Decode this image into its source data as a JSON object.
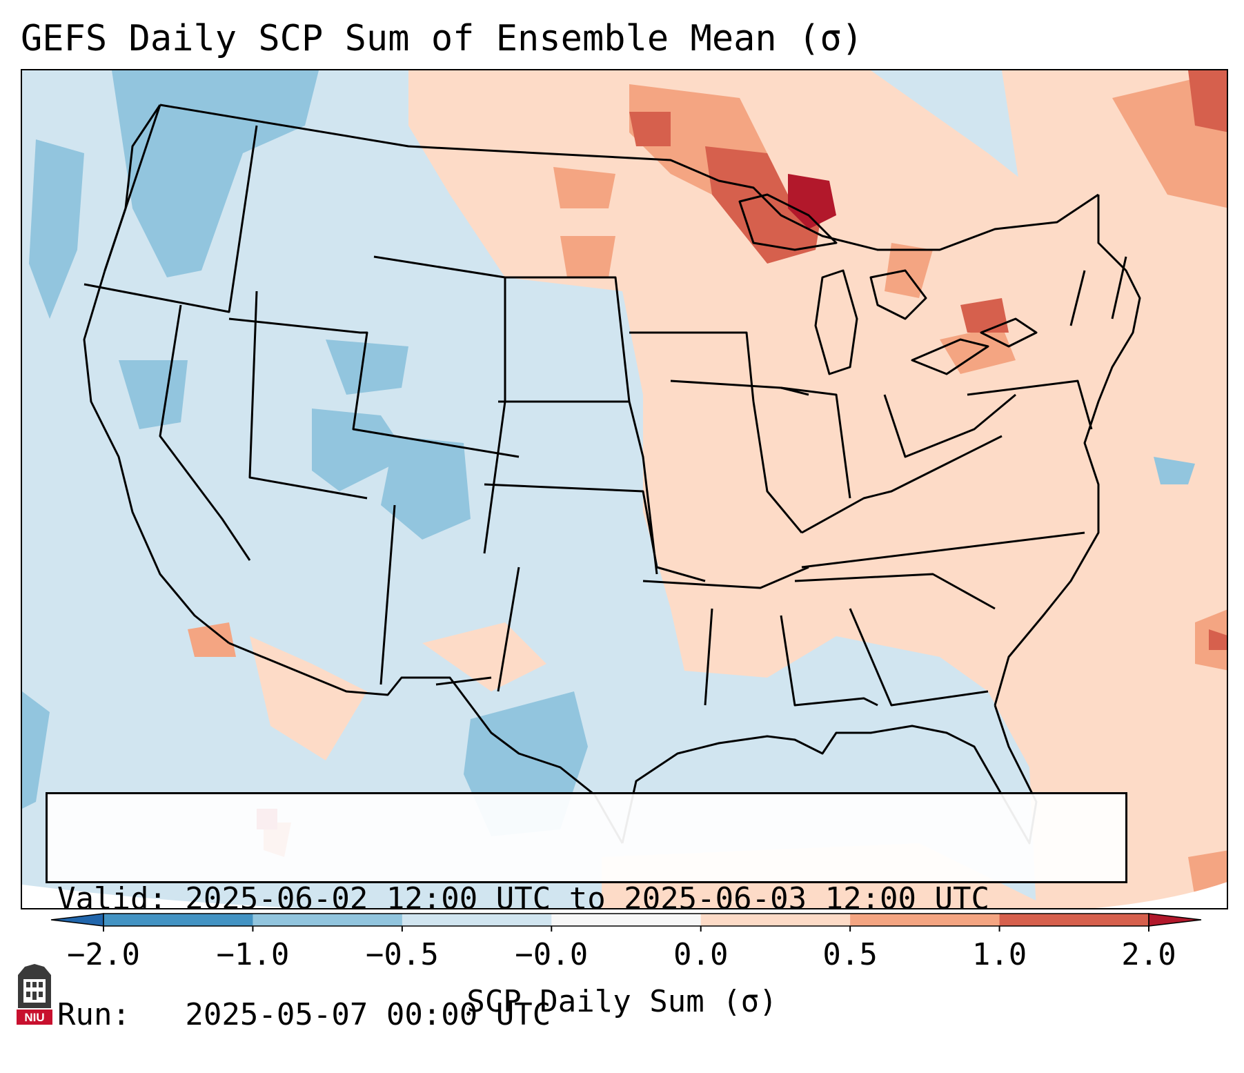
{
  "title": "GEFS Daily SCP Sum of Ensemble Mean (σ)",
  "info": {
    "valid_line": "Valid: 2025-06-02 12:00 UTC to 2025-06-03 12:00 UTC",
    "run_line": "Run:   2025-05-07 00:00 UTC"
  },
  "colorbar": {
    "label": "SCP Daily Sum (σ)",
    "ticks": [
      "−2.0",
      "−1.0",
      "−0.5",
      "−0.0",
      "0.0",
      "0.5",
      "1.0",
      "2.0"
    ],
    "colors": [
      "#2166ac",
      "#4393c3",
      "#92c5de",
      "#d1e5f0",
      "#f7f7f7",
      "#fddbc7",
      "#f4a582",
      "#d6604d",
      "#b2182b"
    ]
  },
  "logo": {
    "text": "NIU"
  }
}
